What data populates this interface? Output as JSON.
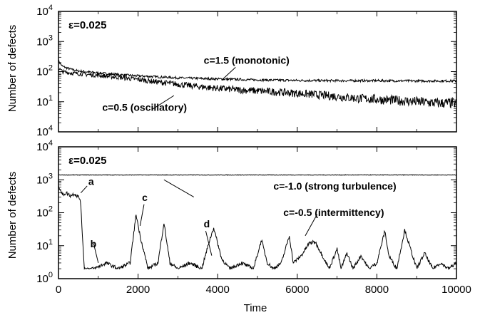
{
  "chart_data": [
    {
      "type": "line",
      "panel": "top",
      "ylabel": "Number of defects",
      "xlabel": "",
      "xlim": [
        0,
        10000
      ],
      "ylim": [
        1,
        10000
      ],
      "y_scale": "log",
      "grid": false,
      "epsilon_label": "ε=0.025",
      "y_tick_labels": [
        "10^1",
        "10^2",
        "10^3",
        "10^4"
      ],
      "y_tick_values": [
        10,
        100,
        1000,
        10000
      ],
      "bottom_tick_label": "10^4",
      "series": [
        {
          "name": "c=1.5 (monotonic)",
          "x": [
            0,
            100,
            300,
            500,
            1000,
            1500,
            2000,
            3000,
            4000,
            5000,
            6000,
            7000,
            8000,
            9000,
            10000
          ],
          "y": [
            220,
            150,
            120,
            105,
            90,
            80,
            72,
            62,
            57,
            53,
            51,
            50,
            50,
            49,
            49
          ]
        },
        {
          "name": "c=0.5 (oscillatory)",
          "x": [
            0,
            100,
            300,
            500,
            1000,
            1500,
            2000,
            2500,
            3000,
            3500,
            4000,
            4500,
            5000,
            5500,
            6000,
            6500,
            7000,
            7500,
            8000,
            8500,
            9000,
            9500,
            10000
          ],
          "y": [
            130,
            100,
            90,
            85,
            75,
            65,
            55,
            45,
            38,
            32,
            28,
            25,
            23,
            21,
            19,
            17,
            15,
            13,
            12,
            11,
            10,
            9,
            9
          ]
        }
      ],
      "annotations": [
        {
          "text": "c=1.5 (monotonic)",
          "x": 3650,
          "y": 180
        },
        {
          "text": "c=0.5 (oscillatory)",
          "x": 1100,
          "y": 5
        }
      ]
    },
    {
      "type": "line",
      "panel": "bottom",
      "ylabel": "Number of defects",
      "xlabel": "Time",
      "xlim": [
        0,
        10000
      ],
      "ylim": [
        1,
        10000
      ],
      "y_scale": "log",
      "grid": false,
      "epsilon_label": "ε=0.025",
      "y_tick_labels": [
        "10^0",
        "10^1",
        "10^2",
        "10^3",
        "10^4"
      ],
      "y_tick_values": [
        1,
        10,
        100,
        1000,
        10000
      ],
      "x_tick_labels": [
        "0",
        "2000",
        "4000",
        "6000",
        "8000",
        "10000"
      ],
      "x_tick_values": [
        0,
        2000,
        4000,
        6000,
        8000,
        10000
      ],
      "series": [
        {
          "name": "c=-1.0 (strong turbulence)",
          "x": [
            0,
            10000
          ],
          "y": [
            1400,
            1400
          ]
        },
        {
          "name": "c=-0.5 (intermittency)",
          "x": [
            0,
            100,
            200,
            300,
            400,
            500,
            550,
            650,
            900,
            1200,
            1500,
            1800,
            1950,
            2050,
            2250,
            2500,
            2650,
            2800,
            3000,
            3300,
            3600,
            3800,
            3900,
            4100,
            4300,
            4600,
            4900,
            5100,
            5250,
            5400,
            5600,
            5800,
            5900,
            6100,
            6300,
            6450,
            6600,
            6800,
            7000,
            7100,
            7250,
            7400,
            7600,
            7800,
            8000,
            8200,
            8300,
            8500,
            8700,
            8800,
            9000,
            9200,
            9400,
            9600,
            9800,
            10000
          ],
          "y": [
            700,
            350,
            400,
            330,
            380,
            300,
            250,
            2,
            2,
            3,
            2,
            3,
            90,
            20,
            2,
            3,
            50,
            3,
            2,
            3,
            2,
            15,
            35,
            4,
            2,
            3,
            2,
            15,
            3,
            2,
            3,
            20,
            3,
            5,
            12,
            13,
            6,
            2,
            8,
            2,
            6,
            2,
            5,
            2,
            3,
            28,
            5,
            2,
            30,
            12,
            2,
            6,
            2,
            3,
            2,
            3
          ]
        }
      ],
      "annotations": [
        {
          "text": "a",
          "x": 750,
          "y": 700
        },
        {
          "text": "b",
          "x": 800,
          "y": 9
        },
        {
          "text": "c",
          "x": 2100,
          "y": 230
        },
        {
          "text": "d",
          "x": 3650,
          "y": 36
        },
        {
          "text": "c=-1.0 (strong turbulence)",
          "x": 5400,
          "y": 500
        },
        {
          "text": "c=-0.5 (intermittency)",
          "x": 5650,
          "y": 80
        }
      ]
    }
  ]
}
